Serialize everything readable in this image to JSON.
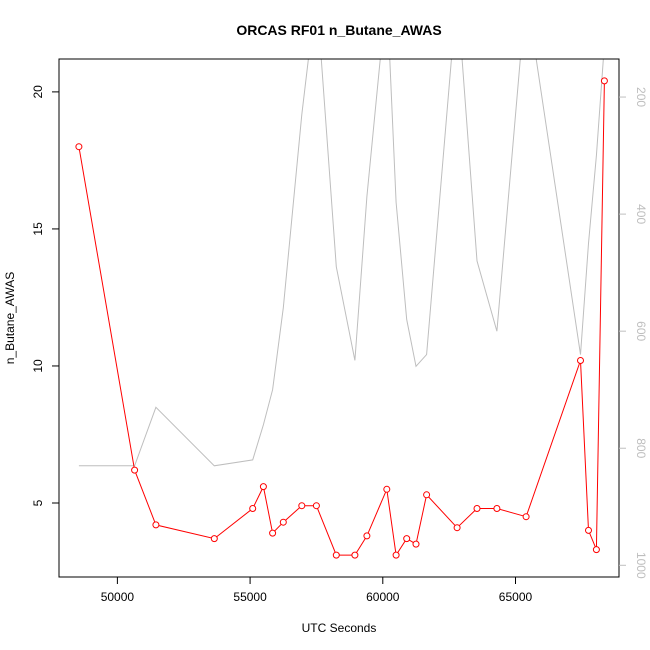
{
  "chart_data": {
    "type": "line",
    "title": "ORCAS RF01 n_Butane_AWAS",
    "xlabel": "UTC Seconds",
    "ylabel": "n_Butane_AWAS",
    "xlim": [
      47800,
      68900
    ],
    "ylim": [
      2.3,
      21.2
    ],
    "x_ticks": [
      50000,
      55000,
      60000,
      65000
    ],
    "y_ticks": [
      5,
      10,
      15,
      20
    ],
    "grid": false,
    "legend": "none",
    "series": [
      {
        "color": "#ff0000",
        "marker": "open-circle",
        "x": [
          48550,
          50650,
          51450,
          53650,
          55100,
          55500,
          55850,
          56250,
          56950,
          57500,
          58250,
          58950,
          59400,
          60150,
          60500,
          60900,
          61250,
          61650,
          62800,
          63550,
          64300,
          65400,
          67450,
          67750,
          68050,
          68350
        ],
        "y": [
          18.0,
          6.2,
          4.2,
          3.7,
          4.8,
          5.6,
          3.9,
          4.3,
          4.9,
          4.9,
          3.1,
          3.1,
          3.8,
          5.5,
          3.1,
          3.7,
          3.5,
          5.3,
          4.1,
          4.8,
          4.8,
          4.5,
          10.2,
          4.0,
          3.3,
          20.4
        ]
      }
    ],
    "secondary_axis": {
      "side": "right",
      "color": "#bebebe",
      "reversed": true,
      "ylim": [
        1020,
        135
      ],
      "ticks": [
        200,
        400,
        600,
        800,
        1000
      ],
      "series": {
        "color": "#bebebe",
        "x": [
          48550,
          50650,
          51450,
          53650,
          55100,
          55500,
          55850,
          56250,
          56950,
          57500,
          58250,
          58950,
          59400,
          60150,
          60500,
          60900,
          61250,
          61650,
          62800,
          63550,
          64300,
          65400,
          67450,
          67750,
          68050,
          68350
        ],
        "y": [
          830,
          830,
          730,
          830,
          820,
          760,
          700,
          560,
          230,
          20,
          490,
          650,
          370,
          20,
          380,
          580,
          660,
          640,
          20,
          480,
          600,
          20,
          640,
          450,
          300,
          110
        ]
      }
    }
  }
}
